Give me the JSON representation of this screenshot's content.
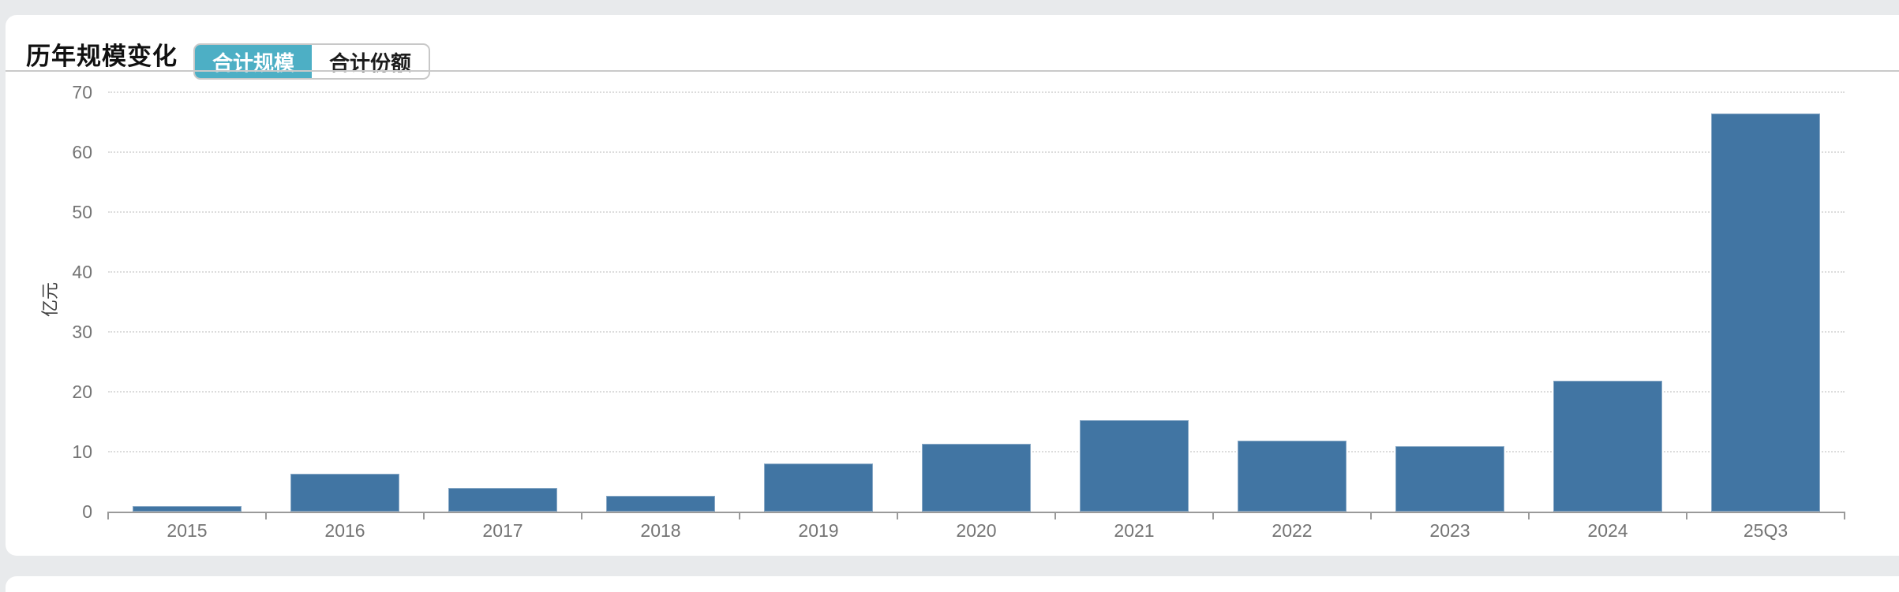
{
  "header": {
    "title": "历年规模变化",
    "tabs": [
      {
        "label": "合计规模",
        "active": true
      },
      {
        "label": "合计份额",
        "active": false
      }
    ]
  },
  "chart_data": {
    "type": "bar",
    "title": "历年规模变化",
    "categories": [
      "2015",
      "2016",
      "2017",
      "2018",
      "2019",
      "2020",
      "2021",
      "2022",
      "2023",
      "2024",
      "25Q3"
    ],
    "values": [
      0.9,
      6.3,
      3.9,
      2.6,
      8.0,
      11.3,
      15.2,
      11.8,
      10.9,
      21.9,
      66.5
    ],
    "unit": "亿元",
    "ylabel": "亿元",
    "xlabel": "",
    "ylim": [
      0,
      70
    ],
    "yticks": [
      0,
      10,
      20,
      30,
      40,
      50,
      60,
      70
    ],
    "grid": "horizontal-dotted",
    "legend": "none",
    "bar_color": "#4175a3",
    "colors": {
      "active_tab": "#4dafc5",
      "axis_line": "#9a9a9a",
      "grid_line": "#dcdcdc",
      "tick_text": "#747474",
      "page_background": "#e8eaec",
      "card_background": "#ffffff",
      "divider": "#c9c9c9"
    }
  }
}
